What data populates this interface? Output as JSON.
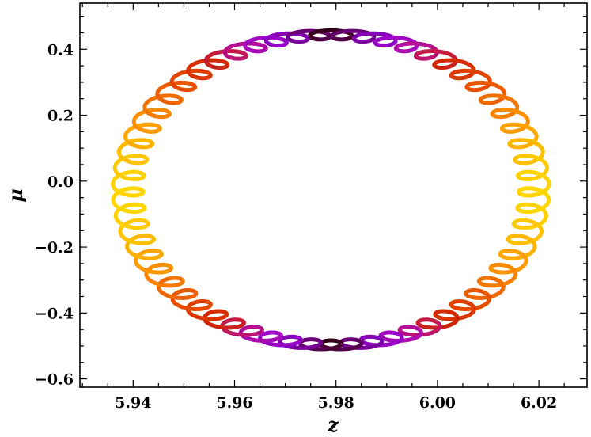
{
  "chart_data": {
    "type": "line",
    "title": "",
    "xlabel": "z",
    "ylabel": "μ",
    "xlim": [
      5.9295,
      6.0295
    ],
    "ylim": [
      -0.625,
      0.54
    ],
    "xticks": [
      5.94,
      5.96,
      5.98,
      6.0,
      6.02
    ],
    "xtick_labels": [
      "5.94",
      "5.96",
      "5.98",
      "6.00",
      "6.02"
    ],
    "yticks": [
      -0.6,
      -0.4,
      -0.2,
      0.0,
      0.2,
      0.4
    ],
    "ytick_labels": [
      "−0.6",
      "−0.4",
      "−0.2",
      "0.0",
      "0.2",
      "0.4"
    ],
    "grid": false,
    "legend": "none",
    "colormap": "gnuplot (dark purple → violet → red → orange → yellow)",
    "series": [
      {
        "description": "trajectory in the (z, μ) plane: loops around a circle with small epicycles, colored by time",
        "center": [
          5.979,
          -0.045
        ],
        "radius_z": 0.04,
        "radius_mu": 0.48,
        "start": [
          5.945,
          -0.05
        ],
        "epicycle_amplitude_z": 0.003,
        "epicycle_amplitude_mu": 0.022
      }
    ]
  }
}
